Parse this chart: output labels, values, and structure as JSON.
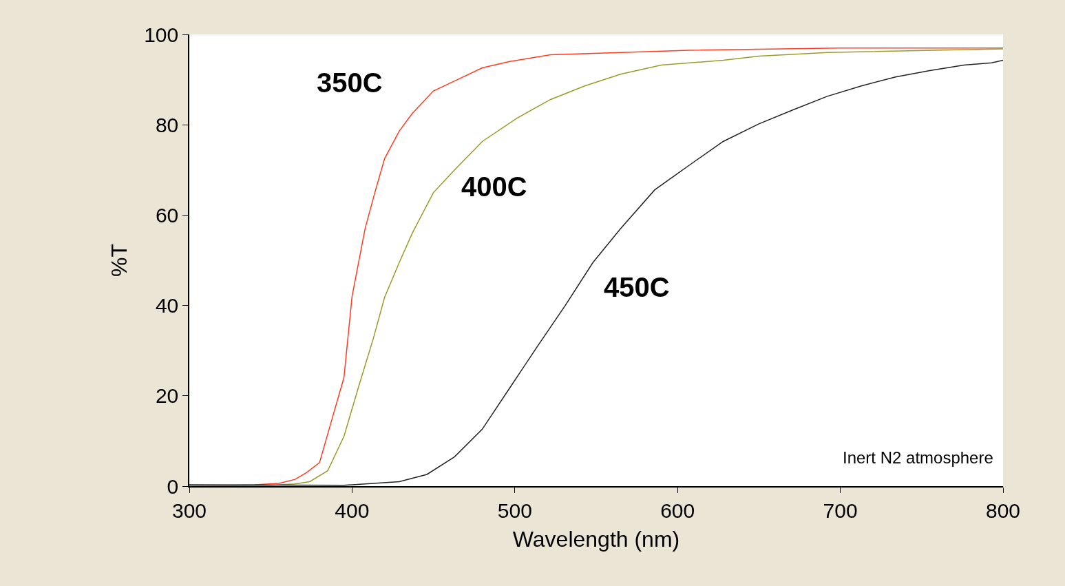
{
  "chart_data": {
    "type": "line",
    "xlabel": "Wavelength (nm)",
    "ylabel": "%T",
    "xlim": [
      300,
      800
    ],
    "ylim": [
      0,
      100
    ],
    "xticks": [
      300,
      400,
      500,
      600,
      700,
      800
    ],
    "yticks": [
      0,
      20,
      40,
      60,
      80,
      100
    ],
    "legend": false,
    "marker": "none",
    "line_style": "solid",
    "annotations": [
      "Inert N2 atmosphere"
    ],
    "series": [
      {
        "name": "350C",
        "color": "#ff3b1f",
        "x": [
          300,
          340,
          355,
          365,
          372,
          380,
          387,
          395,
          400,
          408,
          414,
          420,
          429,
          437,
          450,
          463,
          480,
          497,
          522,
          565,
          607,
          700,
          800
        ],
        "values": [
          0,
          0.3,
          0.6,
          1.5,
          3,
          5.2,
          14,
          24,
          42,
          57,
          65,
          72.5,
          78.6,
          82.5,
          87.5,
          89.7,
          92.6,
          94,
          95.5,
          96,
          96.5,
          97,
          97
        ]
      },
      {
        "name": "400C",
        "color": "#9a9a2a",
        "x": [
          300,
          350,
          365,
          374,
          385,
          395,
          404,
          413,
          420,
          429,
          437,
          450,
          463,
          480,
          501,
          522,
          543,
          565,
          590,
          628,
          650,
          692,
          800
        ],
        "values": [
          0,
          0.2,
          0.5,
          1,
          3.4,
          11,
          22,
          32.6,
          41.8,
          49.5,
          56,
          65,
          70,
          76.3,
          81.4,
          85.6,
          88.6,
          91.2,
          93.2,
          94.3,
          95.2,
          96,
          96.8
        ]
      },
      {
        "name": "450C",
        "color": "#222222",
        "x": [
          300,
          395,
          429,
          446,
          463,
          480,
          497,
          514,
          531,
          548,
          565,
          586,
          607,
          628,
          650,
          671,
          692,
          713,
          734,
          755,
          776,
          793,
          800
        ],
        "values": [
          0.3,
          0.2,
          1,
          2.6,
          6.5,
          12.6,
          21.8,
          31,
          40,
          49.5,
          57,
          65.6,
          71,
          76.3,
          80.2,
          83.3,
          86.3,
          88.6,
          90.6,
          92,
          93.2,
          93.7,
          94.3
        ]
      }
    ]
  }
}
